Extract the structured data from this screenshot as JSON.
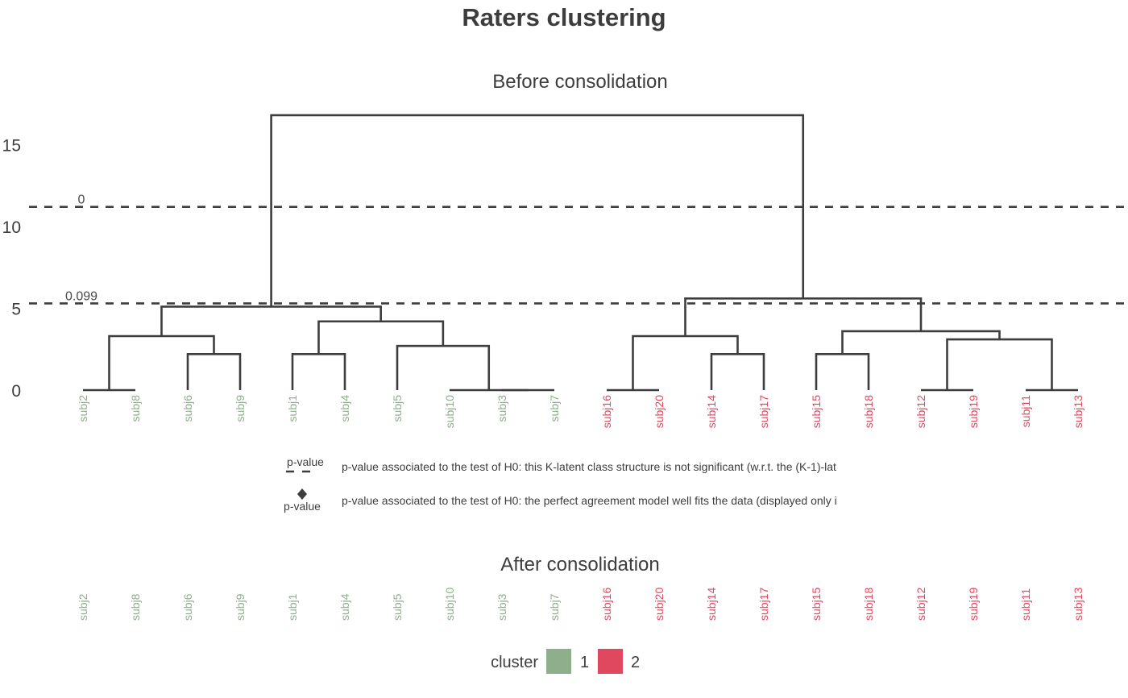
{
  "title": "Raters clustering",
  "subtitle_before": "Before consolidation",
  "subtitle_after": "After consolidation",
  "legend": {
    "dash_label": "p-value",
    "diamond_label": "p-value",
    "dash_text": "p-value associated to the test of H0: this K-latent class structure is not significant (w.r.t. the (K-1)-lat",
    "diamond_text": "p-value associated to the test of H0: the perfect agreement model well fits the data (displayed only i",
    "cluster_title": "cluster",
    "cluster_labels": [
      "1",
      "2"
    ]
  },
  "colors": {
    "cluster1": "#8fae8c",
    "cluster2": "#e0485f",
    "tree": "#3d3d3d"
  },
  "chart_data": {
    "type": "dendrogram",
    "ylim": [
      0,
      17
    ],
    "yticks": [
      0,
      5,
      10,
      15
    ],
    "leaves": [
      {
        "label": "subj2",
        "cluster": 1
      },
      {
        "label": "subj8",
        "cluster": 1
      },
      {
        "label": "subj6",
        "cluster": 1
      },
      {
        "label": "subj9",
        "cluster": 1
      },
      {
        "label": "subj1",
        "cluster": 1
      },
      {
        "label": "subj4",
        "cluster": 1
      },
      {
        "label": "subj5",
        "cluster": 1
      },
      {
        "label": "subj10",
        "cluster": 1
      },
      {
        "label": "subj3",
        "cluster": 1
      },
      {
        "label": "subj7",
        "cluster": 1
      },
      {
        "label": "subj16",
        "cluster": 2
      },
      {
        "label": "subj20",
        "cluster": 2
      },
      {
        "label": "subj14",
        "cluster": 2
      },
      {
        "label": "subj17",
        "cluster": 2
      },
      {
        "label": "subj15",
        "cluster": 2
      },
      {
        "label": "subj18",
        "cluster": 2
      },
      {
        "label": "subj12",
        "cluster": 2
      },
      {
        "label": "subj19",
        "cluster": 2
      },
      {
        "label": "subj11",
        "cluster": 2
      },
      {
        "label": "subj13",
        "cluster": 2
      }
    ],
    "merges": [
      {
        "id": "A",
        "left": "L0",
        "right": "L1",
        "height": 0
      },
      {
        "id": "B",
        "left": "L2",
        "right": "L3",
        "height": 2.2
      },
      {
        "id": "C",
        "left": "A",
        "right": "B",
        "height": 3.3
      },
      {
        "id": "D",
        "left": "L4",
        "right": "L5",
        "height": 2.2
      },
      {
        "id": "E",
        "left": "L8",
        "right": "L9",
        "height": 0
      },
      {
        "id": "F",
        "left": "L7",
        "right": "E",
        "height": 0
      },
      {
        "id": "G",
        "left": "L6",
        "right": "F",
        "height": 2.7
      },
      {
        "id": "H",
        "left": "D",
        "right": "G",
        "height": 4.2
      },
      {
        "id": "I",
        "left": "C",
        "right": "H",
        "height": 5.1
      },
      {
        "id": "J",
        "left": "L10",
        "right": "L11",
        "height": 0
      },
      {
        "id": "K",
        "left": "L12",
        "right": "L13",
        "height": 2.2
      },
      {
        "id": "M",
        "left": "J",
        "right": "K",
        "height": 3.3
      },
      {
        "id": "N",
        "left": "L14",
        "right": "L15",
        "height": 2.2
      },
      {
        "id": "O",
        "left": "L16",
        "right": "L17",
        "height": 0
      },
      {
        "id": "P",
        "left": "L18",
        "right": "L19",
        "height": 0
      },
      {
        "id": "Q",
        "left": "O",
        "right": "P",
        "height": 3.1
      },
      {
        "id": "R",
        "left": "N",
        "right": "Q",
        "height": 3.6
      },
      {
        "id": "S",
        "left": "M",
        "right": "R",
        "height": 5.6
      },
      {
        "id": "T",
        "left": "I",
        "right": "S",
        "height": 16.8
      }
    ],
    "cut_lines": [
      {
        "height": 11.2,
        "label": "0"
      },
      {
        "height": 5.3,
        "label": "0.099"
      }
    ]
  }
}
